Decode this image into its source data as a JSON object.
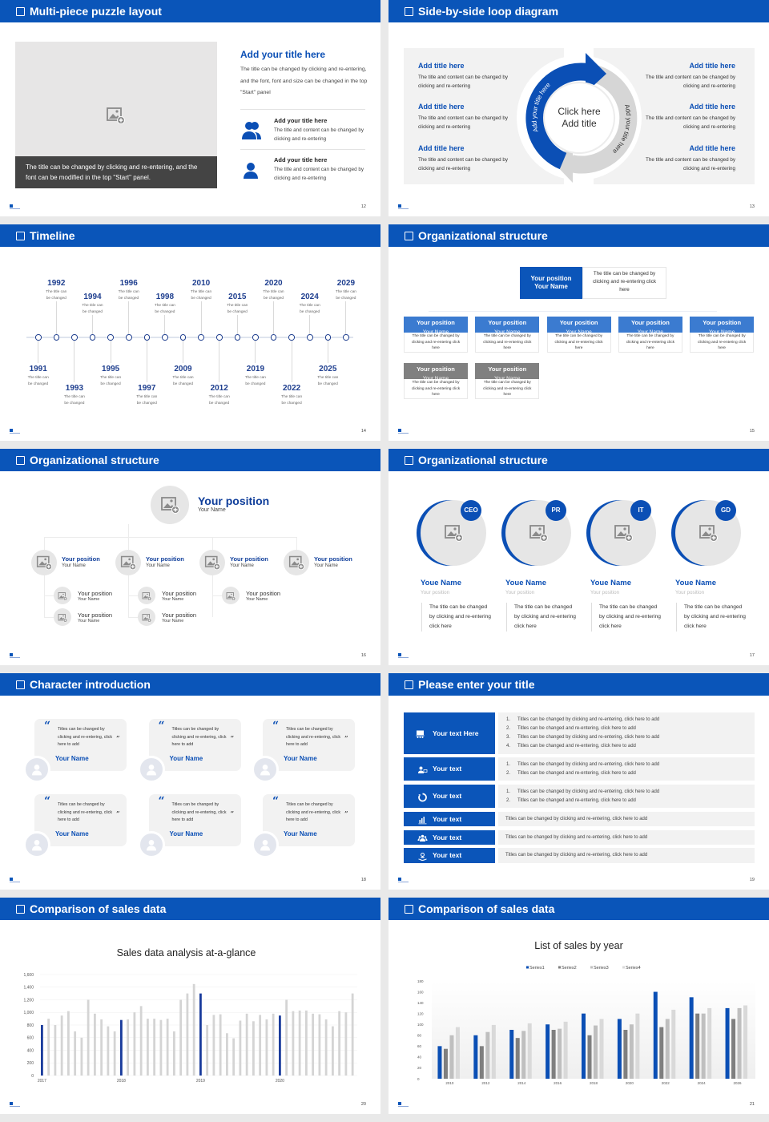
{
  "colors": {
    "brand": "#0a55b9",
    "dark_blue": "#1f3f8f",
    "gray_panel": "#f2f2f2"
  },
  "puzzle": {
    "title": "Multi-piece puzzle layout",
    "page": "12",
    "caption": "The title can be changed by clicking and re-entering, and the font can be modified in the top \"Start\" panel.",
    "heading": "Add your title here",
    "body": "The title can be changed by clicking and re-entering, and the font, font and size can be changed in the top \"Start\" panel",
    "items": [
      {
        "title": "Add your title here",
        "text": "The title and content can be changed by clicking and re-entering",
        "icon": "users-icon"
      },
      {
        "title": "Add your title here",
        "text": "The title and content can be changed by clicking and re-entering",
        "icon": "user-icon"
      }
    ]
  },
  "loop": {
    "title": "Side-by-side loop diagram",
    "page": "13",
    "center_line1": "Click here",
    "center_line2": "Add title",
    "arc_left": "Add your title here",
    "arc_right": "Add your title here",
    "left_items": [
      {
        "title": "Add title here",
        "text": "The title and content can be changed by clicking and re-entering"
      },
      {
        "title": "Add title here",
        "text": "The title and content can be changed by clicking and re-entering"
      },
      {
        "title": "Add title here",
        "text": "The title and content can be changed by clicking and re-entering"
      }
    ],
    "right_items": [
      {
        "title": "Add title here",
        "text": "The title and content can be changed by clicking and re-entering"
      },
      {
        "title": "Add title here",
        "text": "The title and content can be changed by clicking and re-entering"
      },
      {
        "title": "Add title here",
        "text": "The title and content can be changed by clicking and re-entering"
      }
    ]
  },
  "timeline": {
    "title": "Timeline",
    "page": "14",
    "events": [
      {
        "year": "1991",
        "text": "The title can be changed"
      },
      {
        "year": "1992",
        "text": "The title can be changed"
      },
      {
        "year": "1993",
        "text": "The title can be changed"
      },
      {
        "year": "1994",
        "text": "The title can be changed"
      },
      {
        "year": "1995",
        "text": "The title can be changed"
      },
      {
        "year": "1996",
        "text": "The title can be changed"
      },
      {
        "year": "1997",
        "text": "The title can be changed"
      },
      {
        "year": "1998",
        "text": "The title can be changed"
      },
      {
        "year": "2009",
        "text": "The title can be changed"
      },
      {
        "year": "2010",
        "text": "The title can be changed"
      },
      {
        "year": "2012",
        "text": "The title can be changed"
      },
      {
        "year": "2015",
        "text": "The title can be changed"
      },
      {
        "year": "2019",
        "text": "The title can be changed"
      },
      {
        "year": "2020",
        "text": "The title can be changed"
      },
      {
        "year": "2022",
        "text": "The title can be changed"
      },
      {
        "year": "2024",
        "text": "The title can be changed"
      },
      {
        "year": "2025",
        "text": "The title can be changed"
      },
      {
        "year": "2029",
        "text": "The title can be changed"
      }
    ]
  },
  "org1": {
    "title": "Organizational structure",
    "page": "15",
    "top": {
      "position": "Your position",
      "name": "Your Name",
      "text": "The title can be changed by clicking and re-entering click here"
    },
    "row1": [
      {
        "position": "Your position",
        "name": "Your Name",
        "text": "The title can be changed by clicking and re-entering click here"
      },
      {
        "position": "Your position",
        "name": "Your Name",
        "text": "The title can be changed by clicking and re-entering click here"
      },
      {
        "position": "Your position",
        "name": "Your Name",
        "text": "The title can be changed by clicking and re-entering click here"
      },
      {
        "position": "Your position",
        "name": "Your Name",
        "text": "The title can be changed by clicking and re-entering click here"
      },
      {
        "position": "Your position",
        "name": "Your Name",
        "text": "The title can be changed by clicking and re-entering click here"
      }
    ],
    "row2": [
      {
        "position": "Your position",
        "name": "Your Name",
        "text": "The title can be changed by clicking and re-entering click here"
      },
      {
        "position": "Your position",
        "name": "Your Name",
        "text": "The title can be changed by clicking and re-entering click here"
      }
    ]
  },
  "org2": {
    "title": "Organizational structure",
    "page": "16",
    "top": {
      "position": "Your position",
      "name": "Your Name"
    },
    "level2": [
      {
        "position": "Your position",
        "name": "Your Name",
        "children": [
          {
            "position": "Your position",
            "name": "Your Name"
          },
          {
            "position": "Your position",
            "name": "Your Name"
          }
        ]
      },
      {
        "position": "Your position",
        "name": "Your Name",
        "children": [
          {
            "position": "Your position",
            "name": "Your Name"
          },
          {
            "position": "Your position",
            "name": "Your Name"
          }
        ]
      },
      {
        "position": "Your position",
        "name": "Your Name",
        "children": [
          {
            "position": "Your position",
            "name": "Your Name"
          }
        ]
      },
      {
        "position": "Your position",
        "name": "Your Name",
        "children": []
      }
    ]
  },
  "org3": {
    "title": "Organizational structure",
    "page": "17",
    "people": [
      {
        "badge": "CEO",
        "name": "Youe Name",
        "position": "Your position",
        "text": "The title can be changed by clicking and re-entering click here"
      },
      {
        "badge": "PR",
        "name": "Youe Name",
        "position": "Your position",
        "text": "The title can be changed by clicking and re-entering click here"
      },
      {
        "badge": "IT",
        "name": "Youe Name",
        "position": "Your position",
        "text": "The title can be changed by clicking and re-entering click here"
      },
      {
        "badge": "GD",
        "name": "Youe Name",
        "position": "Your position",
        "text": "The title can be changed by clicking and re-entering click here"
      }
    ]
  },
  "characters": {
    "title": "Character introduction",
    "page": "18",
    "cards": [
      {
        "quote": "Titles can be changed by clicking and re-entering, click here to add",
        "name": "Your Name"
      },
      {
        "quote": "Titles can be changed by clicking and re-entering, click here to add",
        "name": "Your Name"
      },
      {
        "quote": "Titles can be changed by clicking and re-entering, click here to add",
        "name": "Your Name"
      },
      {
        "quote": "Titles can be changed by clicking and re-entering, click here to add",
        "name": "Your Name"
      },
      {
        "quote": "Titles can be changed by clicking and re-entering, click here to add",
        "name": "Your Name"
      },
      {
        "quote": "Titles can be changed by clicking and re-entering, click here to add",
        "name": "Your Name"
      }
    ]
  },
  "list": {
    "title": "Please enter your title",
    "page": "19",
    "rows": [
      {
        "label": "Your text Here",
        "icon": "presentation-icon",
        "items": [
          "Titles can be changed by clicking and re-entering, click here to add",
          "Titles can be changed and re-entering, click here to add",
          "Titles can be changed by clicking and re-entering, click here to add",
          "Titles can be changed and re-entering, click here to add"
        ]
      },
      {
        "label": "Your text",
        "icon": "user-card-icon",
        "items": [
          "Titles can be changed by clicking and re-entering, click here to add",
          "Titles can be changed and re-entering, click here to add"
        ]
      },
      {
        "label": "Your text",
        "icon": "recycle-icon",
        "items": [
          "Titles can be changed by clicking and re-entering, click here to add",
          "Titles can be changed and re-entering, click here to add"
        ]
      },
      {
        "label": "Your text",
        "icon": "bar-chart-icon",
        "text": "Titles can be changed by clicking and re-entering, click here to add"
      },
      {
        "label": "Your text",
        "icon": "team-icon",
        "text": "Titles can be changed by clicking and re-entering, click here to add"
      },
      {
        "label": "Your text",
        "icon": "hand-person-icon",
        "text": "Titles can be changed by clicking and re-entering, click here to add"
      }
    ]
  },
  "chart1": {
    "title": "Comparison of sales data",
    "page": "20"
  },
  "chart2": {
    "title": "Comparison of sales data",
    "page": "21"
  },
  "chart_data": [
    {
      "type": "bar",
      "title": "Sales data analysis at-a-glance",
      "ylim": [
        0,
        1600
      ],
      "yticks": [
        "0",
        "200",
        "400",
        "600",
        "800",
        "1,000",
        "1,200",
        "1,400",
        "1,600"
      ],
      "xtick_labels": [
        "2017",
        "2018",
        "2019",
        "2020"
      ],
      "highlight_color": "#1a3c9c",
      "bar_color": "#d4d4d4",
      "grid": true,
      "series": [
        {
          "values": [
            800,
            900,
            800,
            950,
            1020,
            700,
            600,
            1200,
            980,
            890,
            780,
            700,
            880,
            890,
            1000,
            1100,
            900,
            900,
            880,
            900,
            700,
            1200,
            1300,
            1450,
            1300,
            800,
            960,
            970,
            670,
            590,
            870,
            980,
            860,
            960,
            890,
            980,
            950,
            1200,
            1020,
            1030,
            1030,
            980,
            970,
            890,
            780,
            1020,
            1000,
            1300
          ]
        }
      ]
    },
    {
      "type": "bar",
      "title": "List of sales by year",
      "ylim": [
        0,
        180
      ],
      "yticks": [
        "0",
        "20",
        "40",
        "60",
        "80",
        "100",
        "120",
        "140",
        "160",
        "180"
      ],
      "categories": [
        "2010",
        "2012",
        "2014",
        "2016",
        "2018",
        "2020",
        "2022",
        "2024",
        "2026"
      ],
      "legend": "top",
      "grid": false,
      "series": [
        {
          "name": "Series1",
          "color": "#0b4fb5",
          "values": [
            60,
            80,
            90,
            100,
            120,
            110,
            160,
            150,
            130
          ]
        },
        {
          "name": "Series2",
          "color": "#7f7f7f",
          "values": [
            55,
            60,
            75,
            90,
            80,
            90,
            95,
            120,
            110
          ]
        },
        {
          "name": "Series3",
          "color": "#bfbfbf",
          "values": [
            80,
            86,
            88,
            92,
            98,
            100,
            110,
            120,
            130
          ]
        },
        {
          "name": "Series4",
          "color": "#d9d9d9",
          "values": [
            95,
            99,
            102,
            105,
            110,
            120,
            127,
            130,
            135
          ]
        }
      ]
    }
  ]
}
